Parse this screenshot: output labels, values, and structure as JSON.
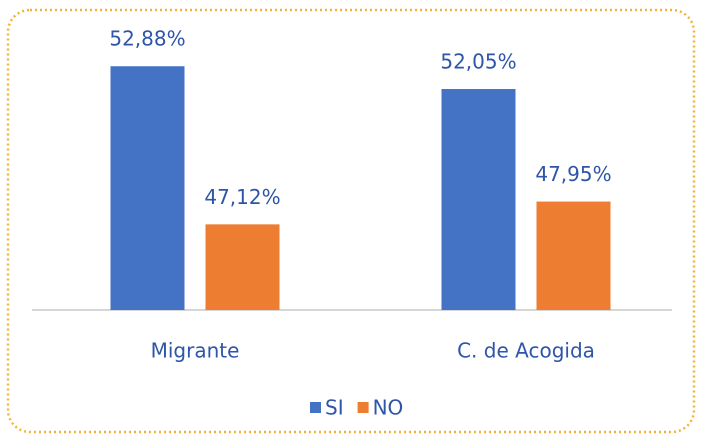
{
  "chart_data": {
    "type": "bar",
    "categories": [
      "Migrante",
      "C. de Acogida"
    ],
    "series": [
      {
        "name": "SI",
        "color": "#4472c4",
        "values": [
          52.88,
          52.05
        ],
        "value_labels": [
          "52,88%",
          "52,05%"
        ]
      },
      {
        "name": "NO",
        "color": "#ed7d31",
        "values": [
          47.12,
          47.95
        ],
        "value_labels": [
          "47,12%",
          "47,95%"
        ]
      }
    ],
    "ylim": [
      44,
      54.2
    ],
    "legend": "bottom"
  }
}
